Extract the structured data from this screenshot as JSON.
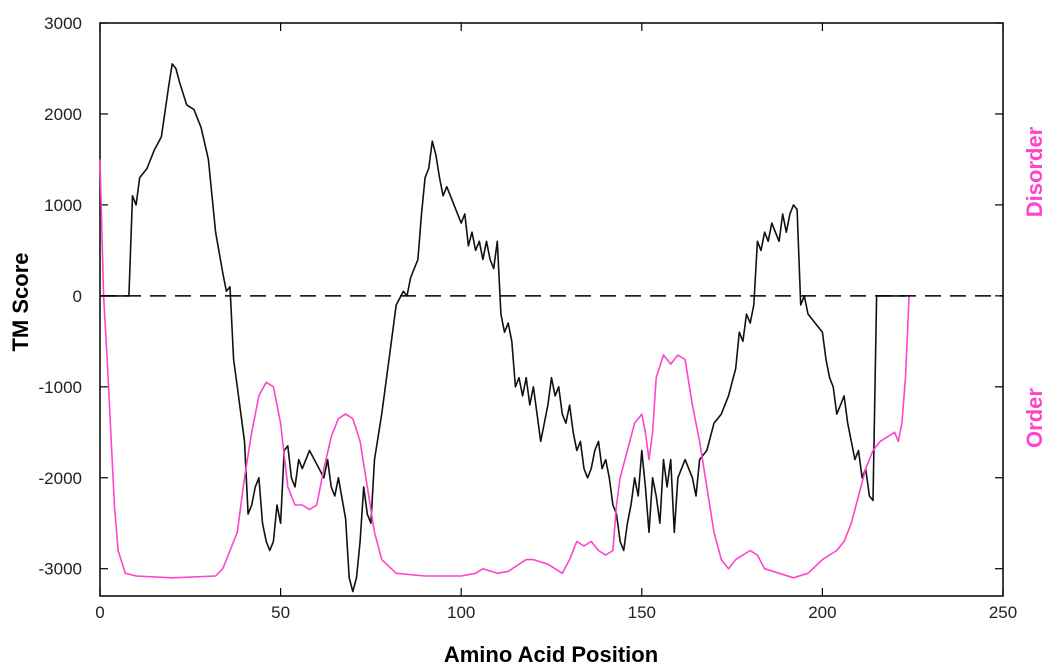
{
  "chart_data": {
    "type": "line",
    "xlabel": "Amino Acid Position",
    "ylabel": "TM Score",
    "xlim": [
      0,
      250
    ],
    "ylim": [
      -3300,
      3000
    ],
    "x_ticks": [
      0,
      50,
      100,
      150,
      200,
      250
    ],
    "y_ticks": [
      3000,
      2000,
      1000,
      0,
      -1000,
      -2000,
      -3000
    ],
    "grid": false,
    "right_labels": [
      {
        "text": "Disorder",
        "color": "#ff44cc"
      },
      {
        "text": "Order",
        "color": "#ff44cc"
      }
    ],
    "reference_line": {
      "y": 0,
      "style": "dashed",
      "color": "#000000"
    },
    "series": [
      {
        "color": "#111111",
        "points": [
          [
            0,
            0
          ],
          [
            8,
            0
          ],
          [
            9,
            1100
          ],
          [
            10,
            1000
          ],
          [
            11,
            1300
          ],
          [
            13,
            1400
          ],
          [
            15,
            1600
          ],
          [
            17,
            1750
          ],
          [
            19,
            2300
          ],
          [
            20,
            2550
          ],
          [
            21,
            2500
          ],
          [
            22,
            2350
          ],
          [
            24,
            2100
          ],
          [
            26,
            2050
          ],
          [
            28,
            1850
          ],
          [
            30,
            1500
          ],
          [
            32,
            700
          ],
          [
            34,
            250
          ],
          [
            35,
            50
          ],
          [
            36,
            100
          ],
          [
            37,
            -700
          ],
          [
            38,
            -1000
          ],
          [
            39,
            -1300
          ],
          [
            40,
            -1600
          ],
          [
            41,
            -2400
          ],
          [
            42,
            -2300
          ],
          [
            43,
            -2100
          ],
          [
            44,
            -2000
          ],
          [
            45,
            -2500
          ],
          [
            46,
            -2700
          ],
          [
            47,
            -2800
          ],
          [
            48,
            -2700
          ],
          [
            49,
            -2300
          ],
          [
            50,
            -2500
          ],
          [
            51,
            -1700
          ],
          [
            52,
            -1650
          ],
          [
            53,
            -2000
          ],
          [
            54,
            -2100
          ],
          [
            55,
            -1800
          ],
          [
            56,
            -1900
          ],
          [
            58,
            -1700
          ],
          [
            60,
            -1850
          ],
          [
            62,
            -2000
          ],
          [
            63,
            -1800
          ],
          [
            64,
            -2100
          ],
          [
            65,
            -2200
          ],
          [
            66,
            -2000
          ],
          [
            68,
            -2450
          ],
          [
            69,
            -3100
          ],
          [
            70,
            -3250
          ],
          [
            71,
            -3100
          ],
          [
            72,
            -2700
          ],
          [
            73,
            -2100
          ],
          [
            74,
            -2400
          ],
          [
            75,
            -2500
          ],
          [
            76,
            -1800
          ],
          [
            78,
            -1300
          ],
          [
            80,
            -700
          ],
          [
            82,
            -100
          ],
          [
            84,
            50
          ],
          [
            85,
            0
          ],
          [
            86,
            200
          ],
          [
            88,
            400
          ],
          [
            89,
            900
          ],
          [
            90,
            1300
          ],
          [
            91,
            1400
          ],
          [
            92,
            1700
          ],
          [
            93,
            1550
          ],
          [
            94,
            1300
          ],
          [
            95,
            1100
          ],
          [
            96,
            1200
          ],
          [
            97,
            1100
          ],
          [
            98,
            1000
          ],
          [
            100,
            800
          ],
          [
            101,
            900
          ],
          [
            102,
            550
          ],
          [
            103,
            700
          ],
          [
            104,
            500
          ],
          [
            105,
            600
          ],
          [
            106,
            400
          ],
          [
            107,
            600
          ],
          [
            108,
            400
          ],
          [
            109,
            300
          ],
          [
            110,
            600
          ],
          [
            111,
            -200
          ],
          [
            112,
            -400
          ],
          [
            113,
            -300
          ],
          [
            114,
            -500
          ],
          [
            115,
            -1000
          ],
          [
            116,
            -900
          ],
          [
            117,
            -1100
          ],
          [
            118,
            -900
          ],
          [
            119,
            -1200
          ],
          [
            120,
            -1000
          ],
          [
            122,
            -1600
          ],
          [
            124,
            -1200
          ],
          [
            125,
            -900
          ],
          [
            126,
            -1100
          ],
          [
            127,
            -1000
          ],
          [
            128,
            -1300
          ],
          [
            129,
            -1400
          ],
          [
            130,
            -1200
          ],
          [
            131,
            -1500
          ],
          [
            132,
            -1700
          ],
          [
            133,
            -1600
          ],
          [
            134,
            -1900
          ],
          [
            135,
            -2000
          ],
          [
            136,
            -1900
          ],
          [
            137,
            -1700
          ],
          [
            138,
            -1600
          ],
          [
            139,
            -1900
          ],
          [
            140,
            -1800
          ],
          [
            141,
            -2000
          ],
          [
            142,
            -2300
          ],
          [
            143,
            -2400
          ],
          [
            144,
            -2700
          ],
          [
            145,
            -2800
          ],
          [
            146,
            -2500
          ],
          [
            147,
            -2300
          ],
          [
            148,
            -2000
          ],
          [
            149,
            -2200
          ],
          [
            150,
            -1700
          ],
          [
            151,
            -2100
          ],
          [
            152,
            -2600
          ],
          [
            153,
            -2000
          ],
          [
            154,
            -2200
          ],
          [
            155,
            -2500
          ],
          [
            156,
            -1800
          ],
          [
            157,
            -2100
          ],
          [
            158,
            -1800
          ],
          [
            159,
            -2600
          ],
          [
            160,
            -2000
          ],
          [
            162,
            -1800
          ],
          [
            164,
            -2000
          ],
          [
            165,
            -2200
          ],
          [
            166,
            -1800
          ],
          [
            168,
            -1700
          ],
          [
            170,
            -1400
          ],
          [
            172,
            -1300
          ],
          [
            174,
            -1100
          ],
          [
            176,
            -800
          ],
          [
            177,
            -400
          ],
          [
            178,
            -500
          ],
          [
            179,
            -200
          ],
          [
            180,
            -300
          ],
          [
            181,
            -100
          ],
          [
            182,
            600
          ],
          [
            183,
            500
          ],
          [
            184,
            700
          ],
          [
            185,
            600
          ],
          [
            186,
            800
          ],
          [
            187,
            700
          ],
          [
            188,
            600
          ],
          [
            189,
            900
          ],
          [
            190,
            700
          ],
          [
            191,
            900
          ],
          [
            192,
            1000
          ],
          [
            193,
            950
          ],
          [
            194,
            -100
          ],
          [
            195,
            0
          ],
          [
            196,
            -200
          ],
          [
            198,
            -300
          ],
          [
            200,
            -400
          ],
          [
            201,
            -700
          ],
          [
            202,
            -900
          ],
          [
            203,
            -1000
          ],
          [
            204,
            -1300
          ],
          [
            205,
            -1200
          ],
          [
            206,
            -1100
          ],
          [
            207,
            -1400
          ],
          [
            208,
            -1600
          ],
          [
            209,
            -1800
          ],
          [
            210,
            -1700
          ],
          [
            211,
            -2000
          ],
          [
            212,
            -1900
          ],
          [
            213,
            -2200
          ],
          [
            214,
            -2250
          ],
          [
            215,
            0
          ],
          [
            223,
            0
          ]
        ]
      },
      {
        "color": "#ff44cc",
        "points": [
          [
            0,
            1500
          ],
          [
            1,
            0
          ],
          [
            2,
            -700
          ],
          [
            3,
            -1500
          ],
          [
            4,
            -2300
          ],
          [
            5,
            -2800
          ],
          [
            7,
            -3050
          ],
          [
            10,
            -3080
          ],
          [
            20,
            -3100
          ],
          [
            32,
            -3080
          ],
          [
            34,
            -3000
          ],
          [
            36,
            -2800
          ],
          [
            38,
            -2600
          ],
          [
            40,
            -2000
          ],
          [
            42,
            -1500
          ],
          [
            44,
            -1100
          ],
          [
            46,
            -950
          ],
          [
            48,
            -1000
          ],
          [
            50,
            -1400
          ],
          [
            52,
            -2100
          ],
          [
            54,
            -2300
          ],
          [
            56,
            -2300
          ],
          [
            58,
            -2350
          ],
          [
            60,
            -2300
          ],
          [
            61,
            -2100
          ],
          [
            62,
            -1900
          ],
          [
            64,
            -1550
          ],
          [
            66,
            -1350
          ],
          [
            68,
            -1300
          ],
          [
            70,
            -1350
          ],
          [
            72,
            -1600
          ],
          [
            74,
            -2100
          ],
          [
            76,
            -2600
          ],
          [
            78,
            -2900
          ],
          [
            82,
            -3050
          ],
          [
            90,
            -3080
          ],
          [
            100,
            -3080
          ],
          [
            104,
            -3050
          ],
          [
            106,
            -3000
          ],
          [
            110,
            -3050
          ],
          [
            113,
            -3030
          ],
          [
            116,
            -2950
          ],
          [
            118,
            -2900
          ],
          [
            120,
            -2900
          ],
          [
            124,
            -2950
          ],
          [
            128,
            -3050
          ],
          [
            130,
            -2900
          ],
          [
            132,
            -2700
          ],
          [
            134,
            -2750
          ],
          [
            136,
            -2700
          ],
          [
            138,
            -2800
          ],
          [
            140,
            -2850
          ],
          [
            142,
            -2800
          ],
          [
            143,
            -2300
          ],
          [
            144,
            -2000
          ],
          [
            146,
            -1700
          ],
          [
            148,
            -1400
          ],
          [
            150,
            -1300
          ],
          [
            151,
            -1500
          ],
          [
            152,
            -1800
          ],
          [
            153,
            -1500
          ],
          [
            154,
            -900
          ],
          [
            156,
            -650
          ],
          [
            158,
            -750
          ],
          [
            160,
            -650
          ],
          [
            162,
            -700
          ],
          [
            164,
            -1200
          ],
          [
            166,
            -1600
          ],
          [
            168,
            -2100
          ],
          [
            170,
            -2600
          ],
          [
            172,
            -2900
          ],
          [
            174,
            -3000
          ],
          [
            176,
            -2900
          ],
          [
            178,
            -2850
          ],
          [
            180,
            -2800
          ],
          [
            182,
            -2850
          ],
          [
            184,
            -3000
          ],
          [
            188,
            -3050
          ],
          [
            192,
            -3100
          ],
          [
            196,
            -3050
          ],
          [
            200,
            -2900
          ],
          [
            204,
            -2800
          ],
          [
            206,
            -2700
          ],
          [
            208,
            -2500
          ],
          [
            210,
            -2200
          ],
          [
            212,
            -1900
          ],
          [
            214,
            -1700
          ],
          [
            216,
            -1600
          ],
          [
            218,
            -1550
          ],
          [
            220,
            -1500
          ],
          [
            221,
            -1600
          ],
          [
            222,
            -1400
          ],
          [
            223,
            -900
          ],
          [
            224,
            0
          ]
        ]
      }
    ]
  }
}
